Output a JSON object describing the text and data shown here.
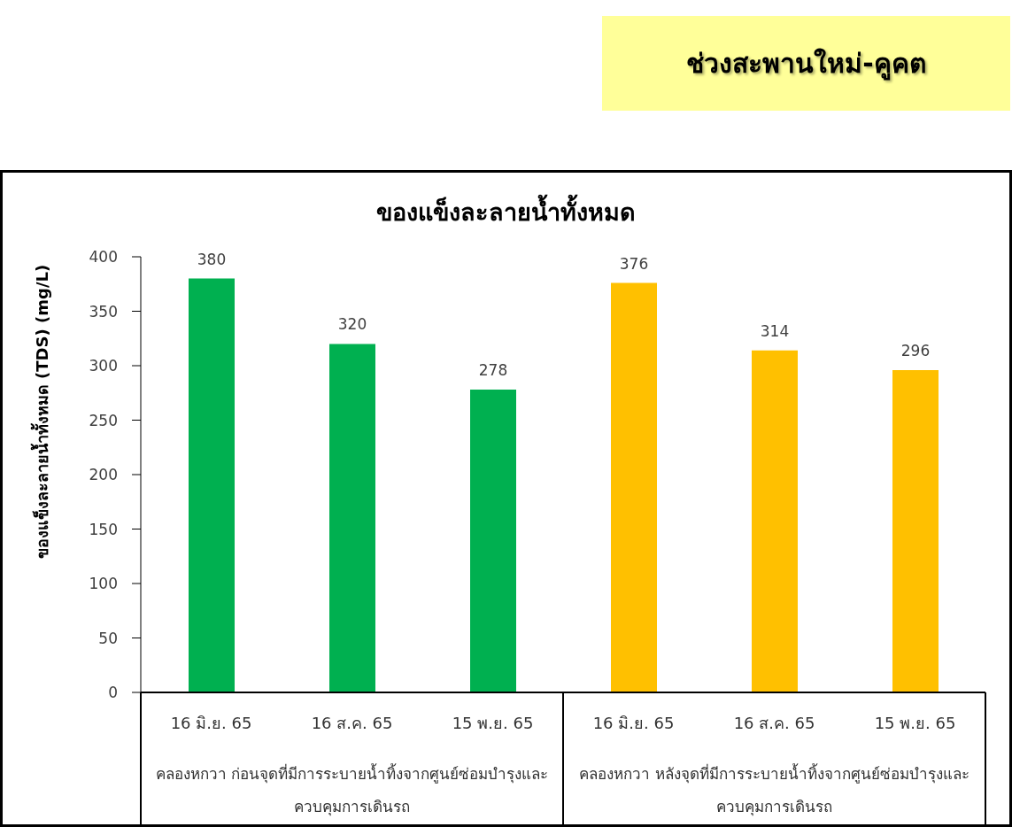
{
  "chart_data": {
    "type": "bar",
    "title": "ของแข็งละลายน้ำทั้งหมด",
    "ylabel": "ของแข็งละลายน้ำทั้งหมด (TDS) (mg/L)",
    "categories": [
      "16 มิ.ย. 65",
      "16 ส.ค. 65",
      "15 พ.ย. 65",
      "16 มิ.ย. 65",
      "16 ส.ค. 65",
      "15 พ.ย. 65"
    ],
    "values": [
      380,
      320,
      278,
      376,
      314,
      296
    ],
    "colors": [
      "#00b050",
      "#00b050",
      "#00b050",
      "#ffc000",
      "#ffc000",
      "#ffc000"
    ],
    "ylim": [
      0,
      400
    ],
    "yticks": [
      0,
      50,
      100,
      150,
      200,
      250,
      300,
      350,
      400
    ],
    "data_labels": true,
    "annotations": [
      "ช่วงสะพานใหม่-คูคต",
      "คลองหกวา ก่อนจุดที่มีการระบายน้ำทิ้งจากศูนย์ซ่อมบำรุงและควบคุมการเดินรถ",
      "คลองหกวา หลังจุดที่มีการระบายน้ำทิ้งจากศูนย์ซ่อมบำรุงและควบคุมการเดินรถ"
    ]
  }
}
